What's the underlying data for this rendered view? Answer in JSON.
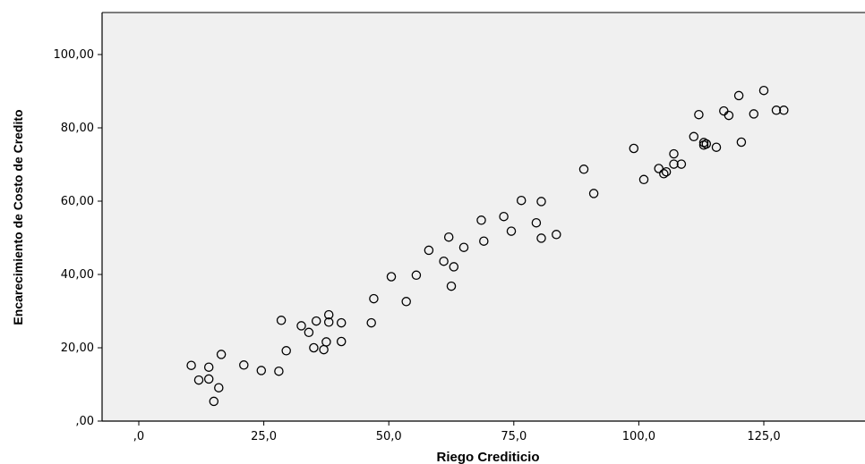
{
  "chart_data": {
    "type": "scatter",
    "title": "",
    "xlabel": "Riego Crediticio",
    "ylabel": "Encarecimiento de Costo de Credito",
    "xlim": [
      -8,
      145
    ],
    "ylim": [
      0,
      110
    ],
    "xticks": [
      0,
      25,
      50,
      75,
      100,
      125
    ],
    "xtick_labels": [
      ",0",
      "25,0",
      "50,0",
      "75,0",
      "100,0",
      "125,0"
    ],
    "yticks": [
      0,
      20,
      40,
      60,
      80,
      100
    ],
    "ytick_labels": [
      ",00",
      "20,00",
      "40,00",
      "60,00",
      "80,00",
      "100,00"
    ],
    "grid": false,
    "background": "#f0f0f0",
    "marker": "open-circle",
    "points": [
      {
        "x": 10.5,
        "y": 15.2
      },
      {
        "x": 12.0,
        "y": 11.2
      },
      {
        "x": 14.0,
        "y": 14.7
      },
      {
        "x": 14.0,
        "y": 11.5
      },
      {
        "x": 15.0,
        "y": 5.4
      },
      {
        "x": 16.0,
        "y": 9.1
      },
      {
        "x": 16.5,
        "y": 18.2
      },
      {
        "x": 21.0,
        "y": 15.3
      },
      {
        "x": 24.5,
        "y": 13.8
      },
      {
        "x": 28.0,
        "y": 13.6
      },
      {
        "x": 28.5,
        "y": 27.5
      },
      {
        "x": 29.5,
        "y": 19.2
      },
      {
        "x": 32.5,
        "y": 26.0
      },
      {
        "x": 34.0,
        "y": 24.2
      },
      {
        "x": 35.0,
        "y": 20.0
      },
      {
        "x": 35.5,
        "y": 27.3
      },
      {
        "x": 37.0,
        "y": 19.5
      },
      {
        "x": 37.5,
        "y": 21.6
      },
      {
        "x": 38.0,
        "y": 29.0
      },
      {
        "x": 38.0,
        "y": 27.0
      },
      {
        "x": 40.5,
        "y": 21.7
      },
      {
        "x": 40.5,
        "y": 26.8
      },
      {
        "x": 46.5,
        "y": 26.8
      },
      {
        "x": 47.0,
        "y": 33.4
      },
      {
        "x": 50.5,
        "y": 39.4
      },
      {
        "x": 53.5,
        "y": 32.6
      },
      {
        "x": 55.5,
        "y": 39.8
      },
      {
        "x": 58.0,
        "y": 46.6
      },
      {
        "x": 61.0,
        "y": 43.6
      },
      {
        "x": 62.0,
        "y": 50.2
      },
      {
        "x": 62.5,
        "y": 36.8
      },
      {
        "x": 63.0,
        "y": 42.1
      },
      {
        "x": 65.0,
        "y": 47.4
      },
      {
        "x": 68.5,
        "y": 54.8
      },
      {
        "x": 69.0,
        "y": 49.1
      },
      {
        "x": 73.0,
        "y": 55.8
      },
      {
        "x": 74.5,
        "y": 51.8
      },
      {
        "x": 76.5,
        "y": 60.2
      },
      {
        "x": 79.5,
        "y": 54.1
      },
      {
        "x": 80.5,
        "y": 49.9
      },
      {
        "x": 80.5,
        "y": 59.9
      },
      {
        "x": 83.5,
        "y": 50.9
      },
      {
        "x": 89.0,
        "y": 68.7
      },
      {
        "x": 91.0,
        "y": 62.1
      },
      {
        "x": 99.0,
        "y": 74.4
      },
      {
        "x": 101.0,
        "y": 65.9
      },
      {
        "x": 104.0,
        "y": 68.9
      },
      {
        "x": 105.0,
        "y": 67.5
      },
      {
        "x": 105.5,
        "y": 68.0
      },
      {
        "x": 107.0,
        "y": 70.1
      },
      {
        "x": 107.0,
        "y": 72.9
      },
      {
        "x": 108.5,
        "y": 70.1
      },
      {
        "x": 111.0,
        "y": 77.6
      },
      {
        "x": 112.0,
        "y": 83.6
      },
      {
        "x": 113.0,
        "y": 75.3
      },
      {
        "x": 113.0,
        "y": 76.0
      },
      {
        "x": 113.5,
        "y": 75.6
      },
      {
        "x": 115.5,
        "y": 74.7
      },
      {
        "x": 117.0,
        "y": 84.6
      },
      {
        "x": 118.0,
        "y": 83.4
      },
      {
        "x": 120.0,
        "y": 88.8
      },
      {
        "x": 120.5,
        "y": 76.1
      },
      {
        "x": 123.0,
        "y": 83.8
      },
      {
        "x": 125.0,
        "y": 90.2
      },
      {
        "x": 127.5,
        "y": 84.8
      },
      {
        "x": 129.0,
        "y": 84.8
      }
    ]
  }
}
